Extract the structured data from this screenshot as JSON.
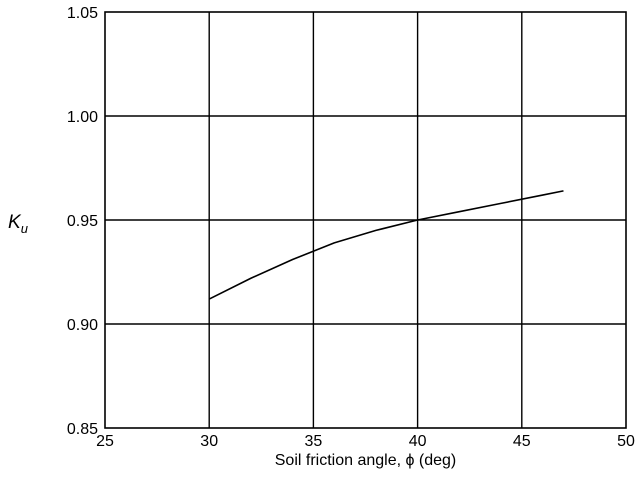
{
  "chart_data": {
    "type": "line",
    "title": "",
    "xlabel": "Soil friction angle, ϕ (deg)",
    "ylabel": {
      "main": "K",
      "sub": "u"
    },
    "xlim": [
      25,
      50
    ],
    "ylim": [
      0.85,
      1.05
    ],
    "x_ticks": [
      25,
      30,
      35,
      40,
      45,
      50
    ],
    "x_tick_labels": [
      "25",
      "30",
      "35",
      "40",
      "45",
      "50"
    ],
    "y_ticks": [
      0.85,
      0.9,
      0.95,
      1.0,
      1.05
    ],
    "y_tick_labels": [
      "0.85",
      "0.90",
      "0.95",
      "1.00",
      "1.05"
    ],
    "grid": true,
    "series": [
      {
        "x": [
          30,
          32,
          34,
          36,
          38,
          40,
          42,
          44,
          46,
          47
        ],
        "y": [
          0.912,
          0.922,
          0.931,
          0.939,
          0.945,
          0.95,
          0.954,
          0.958,
          0.962,
          0.964
        ],
        "color": "#000000"
      }
    ]
  }
}
